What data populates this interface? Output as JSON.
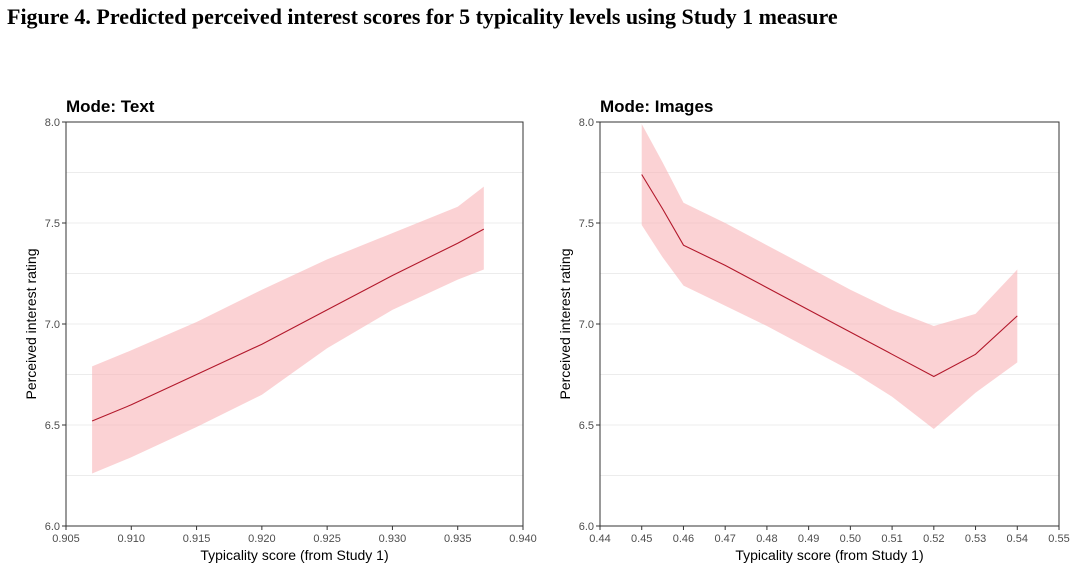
{
  "figure_title": "Figure 4. Predicted perceived interest scores for 5 typicality levels using Study 1 measure",
  "colors": {
    "line": "#b2182b",
    "band": "#f8b4b8",
    "grid": "#ececec",
    "frame": "#333333",
    "tick_text": "#4d4d4d"
  },
  "chart_data": [
    {
      "type": "line",
      "title": "Mode: Text",
      "xlabel": "Typicality score (from Study 1)",
      "ylabel": "Perceived interest rating",
      "xlim": [
        0.905,
        0.94
      ],
      "ylim": [
        6.0,
        8.0
      ],
      "xticks": [
        0.905,
        0.91,
        0.915,
        0.92,
        0.925,
        0.93,
        0.935,
        0.94
      ],
      "xtick_labels": [
        "0.905",
        "0.910",
        "0.915",
        "0.920",
        "0.925",
        "0.930",
        "0.935",
        "0.940"
      ],
      "yticks": [
        6.0,
        6.5,
        7.0,
        7.5,
        8.0
      ],
      "ytick_labels": [
        "6.0",
        "6.5",
        "7.0",
        "7.5",
        "8.0"
      ],
      "grid": true,
      "legend": "none",
      "series": [
        {
          "x": [
            0.907,
            0.91,
            0.915,
            0.92,
            0.925,
            0.93,
            0.935,
            0.937
          ],
          "y": [
            6.52,
            6.6,
            6.75,
            6.9,
            7.07,
            7.24,
            7.4,
            7.47
          ],
          "lower": [
            6.26,
            6.34,
            6.49,
            6.65,
            6.88,
            7.07,
            7.22,
            7.27
          ],
          "upper": [
            6.79,
            6.87,
            7.01,
            7.17,
            7.32,
            7.45,
            7.58,
            7.68
          ]
        }
      ]
    },
    {
      "type": "line",
      "title": "Mode: Images",
      "xlabel": "Typicality score (from Study 1)",
      "ylabel": "Perceived interest rating",
      "xlim": [
        0.44,
        0.55
      ],
      "ylim": [
        6.0,
        8.0
      ],
      "xticks": [
        0.44,
        0.45,
        0.46,
        0.47,
        0.48,
        0.49,
        0.5,
        0.51,
        0.52,
        0.53,
        0.54,
        0.55
      ],
      "xtick_labels": [
        "0.44",
        "0.45",
        "0.46",
        "0.47",
        "0.48",
        "0.49",
        "0.50",
        "0.51",
        "0.52",
        "0.53",
        "0.54",
        "0.55"
      ],
      "yticks": [
        6.0,
        6.5,
        7.0,
        7.5,
        8.0
      ],
      "ytick_labels": [
        "6.0",
        "6.5",
        "7.0",
        "7.5",
        "8.0"
      ],
      "grid": true,
      "legend": "none",
      "series": [
        {
          "x": [
            0.45,
            0.455,
            0.46,
            0.47,
            0.48,
            0.49,
            0.5,
            0.51,
            0.52,
            0.53,
            0.54
          ],
          "y": [
            7.74,
            7.57,
            7.39,
            7.29,
            7.18,
            7.07,
            6.96,
            6.85,
            6.74,
            6.85,
            7.04
          ],
          "lower": [
            7.49,
            7.33,
            7.19,
            7.09,
            6.99,
            6.88,
            6.77,
            6.64,
            6.48,
            6.66,
            6.81
          ],
          "upper": [
            7.99,
            7.8,
            7.6,
            7.5,
            7.39,
            7.28,
            7.17,
            7.07,
            6.99,
            7.05,
            7.27
          ]
        }
      ]
    }
  ]
}
